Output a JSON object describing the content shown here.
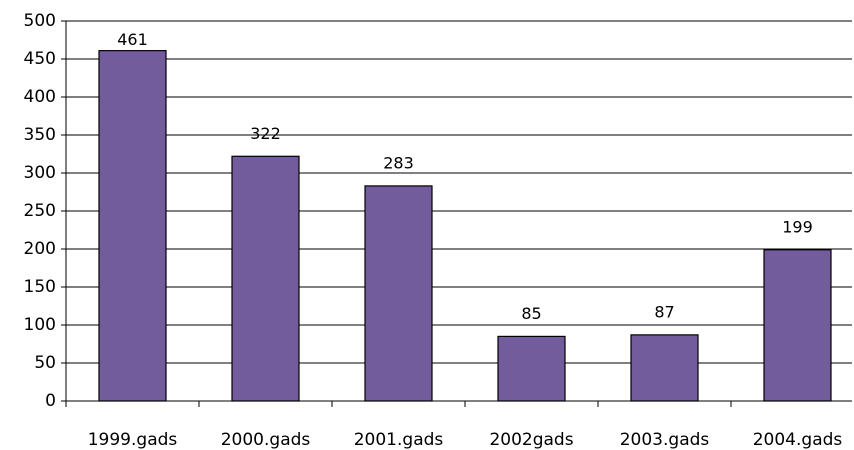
{
  "chart_data": {
    "type": "bar",
    "categories": [
      "1999.gads",
      "2000.gads",
      "2001.gads",
      "2002gads",
      "2003.gads",
      "2004.gads"
    ],
    "values": [
      461,
      322,
      283,
      85,
      87,
      199
    ],
    "color": "#735c9c",
    "ylim": [
      0,
      500
    ],
    "yticks": [
      0,
      50,
      100,
      150,
      200,
      250,
      300,
      350,
      400,
      450,
      500
    ],
    "grid": true
  }
}
